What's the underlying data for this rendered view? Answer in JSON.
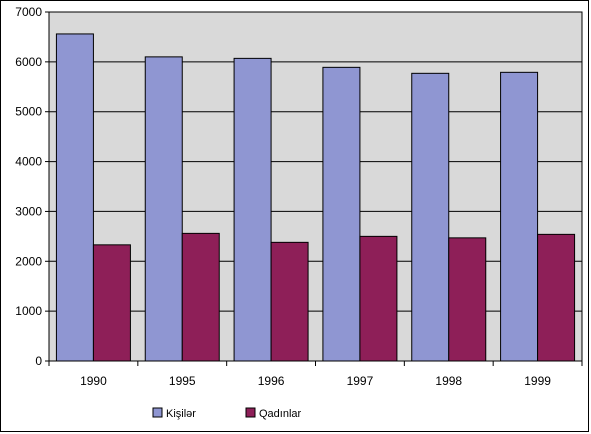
{
  "chart_data": {
    "type": "bar",
    "categories": [
      "1990",
      "1995",
      "1996",
      "1997",
      "1998",
      "1999"
    ],
    "series": [
      {
        "name": "Kişilər",
        "values": [
          6560,
          6100,
          6070,
          5890,
          5770,
          5790
        ],
        "color": "#8F96D2"
      },
      {
        "name": "Qadınlar",
        "values": [
          2330,
          2560,
          2380,
          2500,
          2470,
          2540
        ],
        "color": "#8E1F58"
      }
    ],
    "title": "",
    "xlabel": "",
    "ylabel": "",
    "ylim": [
      0,
      7000
    ],
    "yticks": [
      "0",
      "1000",
      "2000",
      "3000",
      "4000",
      "5000",
      "6000",
      "7000"
    ],
    "grid": true,
    "legend": "bottom-left",
    "plot_background": "#D9D9D9"
  }
}
